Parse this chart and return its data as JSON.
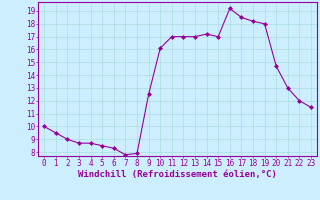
{
  "x": [
    0,
    1,
    2,
    3,
    4,
    5,
    6,
    7,
    8,
    9,
    10,
    11,
    12,
    13,
    14,
    15,
    16,
    17,
    18,
    19,
    20,
    21,
    22,
    23
  ],
  "y": [
    10.0,
    9.5,
    9.0,
    8.7,
    8.7,
    8.5,
    8.3,
    7.8,
    7.9,
    12.5,
    16.1,
    17.0,
    17.0,
    17.0,
    17.2,
    17.0,
    19.2,
    18.5,
    18.2,
    18.0,
    14.7,
    13.0,
    12.0,
    11.5
  ],
  "line_color": "#990099",
  "marker": "D",
  "marker_size": 2.0,
  "bg_color": "#cceeff",
  "grid_color": "#aadddd",
  "xlabel": "Windchill (Refroidissement éolien,°C)",
  "ylim": [
    7.7,
    19.7
  ],
  "xlim": [
    -0.5,
    23.5
  ],
  "yticks": [
    8,
    9,
    10,
    11,
    12,
    13,
    14,
    15,
    16,
    17,
    18,
    19
  ],
  "xticks": [
    0,
    1,
    2,
    3,
    4,
    5,
    6,
    7,
    8,
    9,
    10,
    11,
    12,
    13,
    14,
    15,
    16,
    17,
    18,
    19,
    20,
    21,
    22,
    23
  ],
  "label_fontsize": 6.5,
  "tick_fontsize": 5.5
}
